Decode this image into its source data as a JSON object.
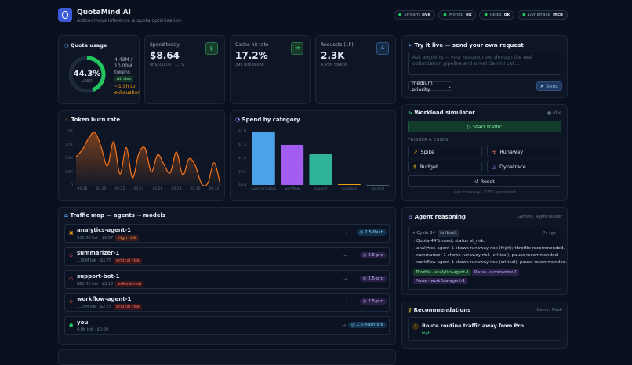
{
  "header": {
    "title": "QuotaMind AI",
    "subtitle": "Autonomous inference & quota optimization",
    "status": [
      {
        "name": "Stream",
        "state": "live"
      },
      {
        "name": "Mongo",
        "state": "ok"
      },
      {
        "name": "Redis",
        "state": "ok"
      },
      {
        "name": "Dynatrace",
        "state": "mcp"
      }
    ]
  },
  "quota": {
    "title": "Quota usage",
    "used_percent": 44.3,
    "used_label": "44.3%",
    "used_caption": "USED",
    "tokens": "4.43M / 10.00M tokens",
    "status": "at_risk",
    "eta": "~1.9h to exhaustion"
  },
  "stats": [
    {
      "title": "Spend today",
      "value": "$8.64",
      "note": "of $500.00 · 1.7%"
    },
    {
      "title": "Cache hit rate",
      "value": "17.2%",
      "note": "399 hits saved"
    },
    {
      "title": "Requests (1h)",
      "value": "2.3K",
      "note": "4.45M tokens"
    }
  ],
  "try_live": {
    "title": "Try it live — send your own request",
    "placeholder": "Ask anything — your request runs through the real optimization pipeline and a real Gemini call...",
    "priority": "medium priority",
    "send": "Send"
  },
  "simulator": {
    "title": "Workload simulator",
    "state": "idle",
    "start": "Start traffic",
    "crisis_label": "TRIGGER A CRISIS",
    "crises": [
      "Spike",
      "Runaway",
      "Budget",
      "Dynatrace"
    ],
    "reset": "Reset",
    "last": "last: runaway · 2231 generated"
  },
  "chart_data": [
    {
      "type": "area",
      "title": "Token burn rate",
      "color": "#f97316",
      "grid": true,
      "categories": [
        null,
        "00:18",
        null,
        null,
        "00:20",
        null,
        null,
        "00:22",
        null,
        null,
        "00:24",
        null,
        null,
        "00:26",
        null,
        null,
        "00:28",
        null,
        null,
        "00:30",
        null,
        null,
        "00:32",
        null
      ],
      "values": [
        5200,
        6500,
        8600,
        9700,
        7000,
        3500,
        8000,
        2000,
        6900,
        1300,
        5800,
        6800,
        2400,
        5600,
        3800,
        2200,
        6100,
        1800,
        4800,
        3600,
        200,
        300,
        4100,
        0
      ],
      "ylim": [
        0,
        10000
      ],
      "yticks": [
        0,
        {
          "value": 2500,
          "label": "2.5K"
        },
        {
          "value": 5000,
          "label": "5.0K"
        },
        {
          "value": 7500,
          "label": "7.5K"
        },
        {
          "value": 10000,
          "label": "10K"
        }
      ]
    },
    {
      "type": "bar",
      "title": "Spend by category",
      "grid": true,
      "categories": [
        "summarization",
        "workflow",
        "support",
        "analytics",
        "general"
      ],
      "values": [
        1.97,
        1.48,
        1.13,
        0.03,
        0
      ],
      "colors": [
        "#4aa3e8",
        "#a35cf0",
        "#2fb39a",
        "#f59e0b",
        "#64748b"
      ],
      "ylim": [
        0,
        2
      ],
      "yticks": [
        {
          "value": 0,
          "label": "$0.0"
        },
        {
          "value": 0.5,
          "label": "$0.5"
        },
        {
          "value": 1,
          "label": "$1.0"
        },
        {
          "value": 1.5,
          "label": "$1.5"
        },
        {
          "value": 2,
          "label": "$2.0"
        }
      ]
    }
  ],
  "traffic_map": {
    "title": "Traffic map — agents → models",
    "rows": [
      {
        "agent": "analytics-agent-1",
        "usage": "535.3K tok · $0.07",
        "risk": "high risk",
        "model": "2.5-flash"
      },
      {
        "agent": "summarizer-1",
        "usage": "1.80M tok · $3.75",
        "risk": "critical risk",
        "model": "2.5-pro"
      },
      {
        "agent": "support-bot-1",
        "usage": "851.4K tok · $2.12",
        "risk": "critical risk",
        "model": "2.5-pro"
      },
      {
        "agent": "workflow-agent-1",
        "usage": "1.25M tok · $2.75",
        "risk": "critical risk",
        "model": "2.5-pro"
      },
      {
        "agent": "you",
        "usage": "4.0K tok · $0.00",
        "model": "2.5-flash-lite"
      }
    ]
  },
  "reasoning": {
    "title": "Agent reasoning",
    "source": "Gemini · Agent Builder",
    "cycle": "Cycle 94",
    "mode": "fallback",
    "age": "7s ago",
    "lines": [
      "Quota 44% used, status at_risk.",
      "analytics-agent-1 shows runaway risk (high); throttle recommended.",
      "summarizer-1 shows runaway risk (critical); pause recommended.",
      "workflow-agent-1 shows runaway risk (critical); pause recommended."
    ],
    "actions": [
      "Throttle · analytics-agent-1",
      "Pause · summarizer-1",
      "Pause · workflow-agent-1"
    ]
  },
  "recommendations": {
    "title": "Recommendations",
    "source": "Gemini Flash",
    "items": [
      {
        "text": "Route routine traffic away from Pro",
        "priority": "high"
      }
    ]
  }
}
